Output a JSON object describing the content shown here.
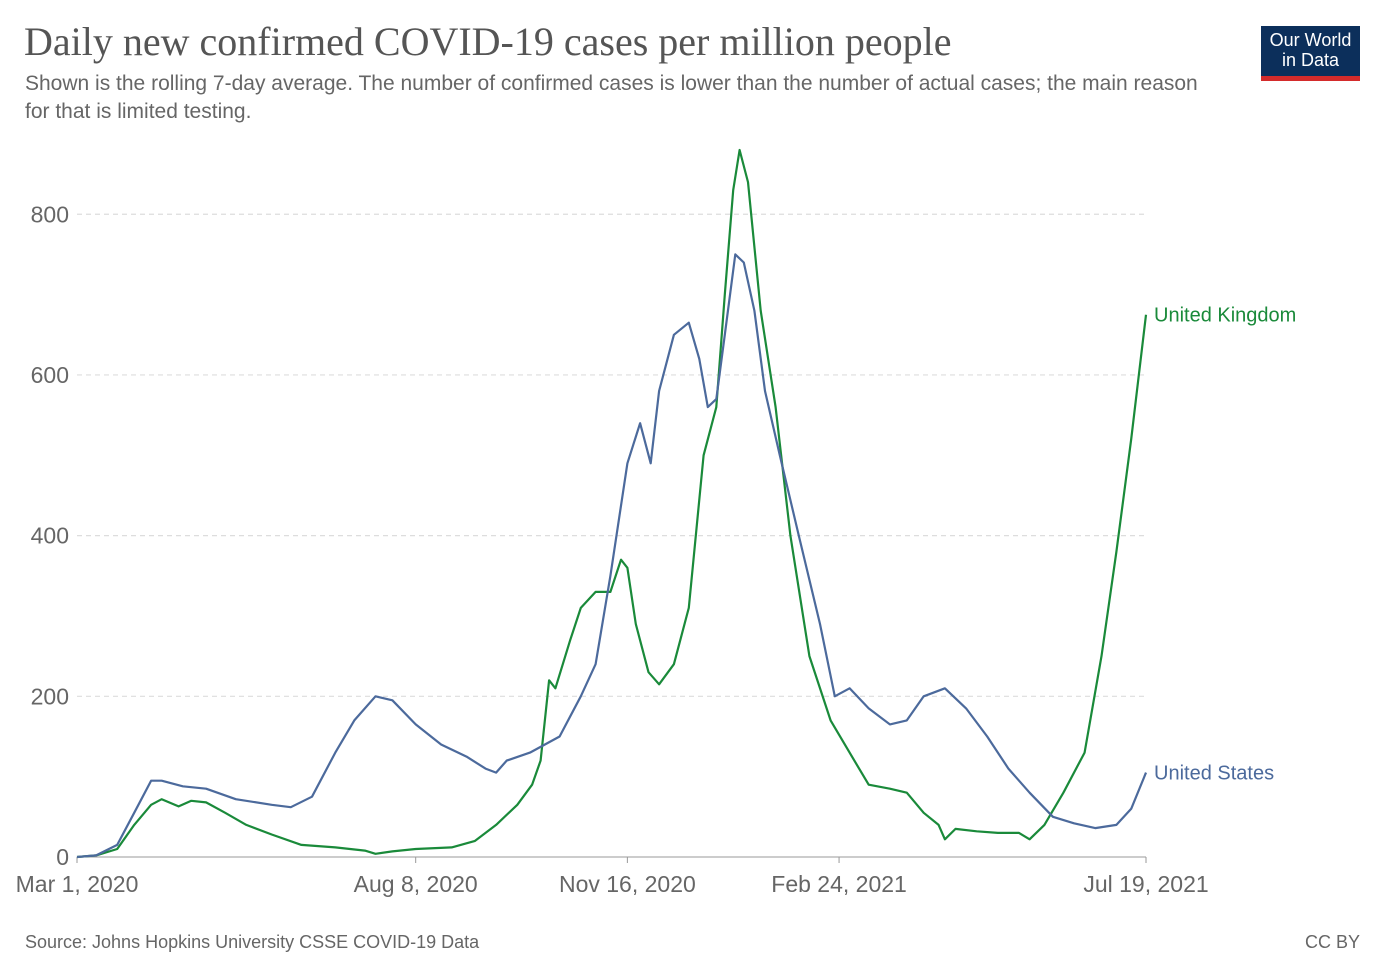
{
  "header": {
    "title": "Daily new confirmed COVID-19 cases per million people",
    "subtitle": "Shown is the rolling 7-day average. The number of confirmed cases is lower than the number of actual cases; the main reason for that is limited testing.",
    "logo_line1": "Our World",
    "logo_line2": "in Data"
  },
  "footer": {
    "source": "Source: Johns Hopkins University CSSE COVID-19 Data",
    "license": "CC BY"
  },
  "colors": {
    "uk": "#1a8a3a",
    "us": "#4c6a9c",
    "grid": "#dddddd",
    "logo_bg": "#0c2f5b",
    "logo_bar": "#d42b2b"
  },
  "chart_data": {
    "type": "line",
    "title": "Daily new confirmed COVID-19 cases per million people",
    "xlabel": "",
    "ylabel": "",
    "ylim": [
      0,
      880
    ],
    "xlim": [
      "2020-03-01",
      "2021-07-19"
    ],
    "grid": "horizontal dashed",
    "y_ticks": [
      "0",
      "200",
      "400",
      "600",
      "800"
    ],
    "x_ticks": [
      "Mar 1, 2020",
      "Aug 8, 2020",
      "Nov 16, 2020",
      "Feb 24, 2021",
      "Jul 19, 2021"
    ],
    "x_tick_dates": [
      "2020-03-01",
      "2020-08-08",
      "2020-11-16",
      "2021-02-24",
      "2021-07-19"
    ],
    "series": [
      {
        "name": "United Kingdom",
        "color": "#1a8a3a",
        "points": [
          [
            "2020-03-01",
            0
          ],
          [
            "2020-03-10",
            2
          ],
          [
            "2020-03-20",
            10
          ],
          [
            "2020-03-28",
            40
          ],
          [
            "2020-04-05",
            65
          ],
          [
            "2020-04-10",
            72
          ],
          [
            "2020-04-18",
            63
          ],
          [
            "2020-04-24",
            70
          ],
          [
            "2020-05-01",
            68
          ],
          [
            "2020-05-10",
            55
          ],
          [
            "2020-05-20",
            40
          ],
          [
            "2020-06-01",
            28
          ],
          [
            "2020-06-15",
            15
          ],
          [
            "2020-07-01",
            12
          ],
          [
            "2020-07-15",
            8
          ],
          [
            "2020-07-20",
            4
          ],
          [
            "2020-07-28",
            7
          ],
          [
            "2020-08-08",
            10
          ],
          [
            "2020-08-25",
            12
          ],
          [
            "2020-09-05",
            20
          ],
          [
            "2020-09-15",
            40
          ],
          [
            "2020-09-25",
            65
          ],
          [
            "2020-10-02",
            90
          ],
          [
            "2020-10-06",
            120
          ],
          [
            "2020-10-10",
            220
          ],
          [
            "2020-10-13",
            210
          ],
          [
            "2020-10-20",
            270
          ],
          [
            "2020-10-25",
            310
          ],
          [
            "2020-11-01",
            330
          ],
          [
            "2020-11-08",
            330
          ],
          [
            "2020-11-13",
            370
          ],
          [
            "2020-11-16",
            360
          ],
          [
            "2020-11-20",
            290
          ],
          [
            "2020-11-26",
            230
          ],
          [
            "2020-12-01",
            215
          ],
          [
            "2020-12-08",
            240
          ],
          [
            "2020-12-15",
            310
          ],
          [
            "2020-12-22",
            500
          ],
          [
            "2020-12-28",
            560
          ],
          [
            "2021-01-01",
            700
          ],
          [
            "2021-01-05",
            830
          ],
          [
            "2021-01-08",
            880
          ],
          [
            "2021-01-12",
            840
          ],
          [
            "2021-01-18",
            680
          ],
          [
            "2021-01-25",
            560
          ],
          [
            "2021-02-01",
            400
          ],
          [
            "2021-02-10",
            250
          ],
          [
            "2021-02-20",
            170
          ],
          [
            "2021-03-01",
            130
          ],
          [
            "2021-03-10",
            90
          ],
          [
            "2021-03-20",
            85
          ],
          [
            "2021-03-28",
            80
          ],
          [
            "2021-04-05",
            55
          ],
          [
            "2021-04-12",
            40
          ],
          [
            "2021-04-15",
            22
          ],
          [
            "2021-04-20",
            35
          ],
          [
            "2021-04-30",
            32
          ],
          [
            "2021-05-10",
            30
          ],
          [
            "2021-05-20",
            30
          ],
          [
            "2021-05-25",
            22
          ],
          [
            "2021-06-01",
            40
          ],
          [
            "2021-06-10",
            80
          ],
          [
            "2021-06-20",
            130
          ],
          [
            "2021-06-28",
            250
          ],
          [
            "2021-07-05",
            380
          ],
          [
            "2021-07-12",
            520
          ],
          [
            "2021-07-19",
            675
          ]
        ]
      },
      {
        "name": "United States",
        "color": "#4c6a9c",
        "points": [
          [
            "2020-03-01",
            0
          ],
          [
            "2020-03-10",
            2
          ],
          [
            "2020-03-20",
            15
          ],
          [
            "2020-03-28",
            55
          ],
          [
            "2020-04-05",
            95
          ],
          [
            "2020-04-10",
            95
          ],
          [
            "2020-04-20",
            88
          ],
          [
            "2020-05-01",
            85
          ],
          [
            "2020-05-15",
            72
          ],
          [
            "2020-06-01",
            65
          ],
          [
            "2020-06-10",
            62
          ],
          [
            "2020-06-20",
            75
          ],
          [
            "2020-07-01",
            130
          ],
          [
            "2020-07-10",
            170
          ],
          [
            "2020-07-20",
            200
          ],
          [
            "2020-07-28",
            195
          ],
          [
            "2020-08-08",
            165
          ],
          [
            "2020-08-20",
            140
          ],
          [
            "2020-09-01",
            125
          ],
          [
            "2020-09-10",
            110
          ],
          [
            "2020-09-15",
            105
          ],
          [
            "2020-09-20",
            120
          ],
          [
            "2020-10-01",
            130
          ],
          [
            "2020-10-15",
            150
          ],
          [
            "2020-10-25",
            200
          ],
          [
            "2020-11-01",
            240
          ],
          [
            "2020-11-08",
            350
          ],
          [
            "2020-11-16",
            490
          ],
          [
            "2020-11-22",
            540
          ],
          [
            "2020-11-27",
            490
          ],
          [
            "2020-12-01",
            580
          ],
          [
            "2020-12-08",
            650
          ],
          [
            "2020-12-15",
            665
          ],
          [
            "2020-12-20",
            620
          ],
          [
            "2020-12-24",
            560
          ],
          [
            "2020-12-28",
            570
          ],
          [
            "2021-01-01",
            650
          ],
          [
            "2021-01-06",
            750
          ],
          [
            "2021-01-10",
            740
          ],
          [
            "2021-01-15",
            680
          ],
          [
            "2021-01-20",
            580
          ],
          [
            "2021-01-27",
            500
          ],
          [
            "2021-02-05",
            400
          ],
          [
            "2021-02-15",
            290
          ],
          [
            "2021-02-22",
            200
          ],
          [
            "2021-03-01",
            210
          ],
          [
            "2021-03-10",
            185
          ],
          [
            "2021-03-20",
            165
          ],
          [
            "2021-03-28",
            170
          ],
          [
            "2021-04-05",
            200
          ],
          [
            "2021-04-15",
            210
          ],
          [
            "2021-04-25",
            185
          ],
          [
            "2021-05-05",
            150
          ],
          [
            "2021-05-15",
            110
          ],
          [
            "2021-05-25",
            80
          ],
          [
            "2021-06-05",
            50
          ],
          [
            "2021-06-15",
            42
          ],
          [
            "2021-06-25",
            36
          ],
          [
            "2021-07-05",
            40
          ],
          [
            "2021-07-12",
            60
          ],
          [
            "2021-07-19",
            105
          ]
        ]
      }
    ]
  }
}
